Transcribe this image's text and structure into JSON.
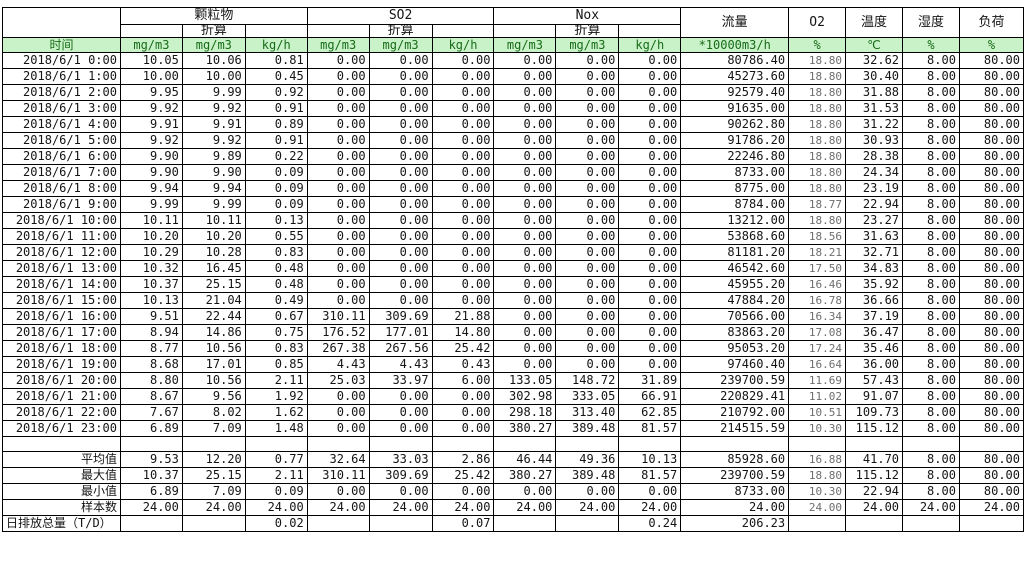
{
  "colors": {
    "unit_row_bg": "#c9f2c9",
    "unit_row_text": "#176b17",
    "border": "#000000",
    "o2_text": "#6e6e6e"
  },
  "header": {
    "time_label": "时间",
    "converted_label": "折算",
    "groups": [
      {
        "label": "颗粒物"
      },
      {
        "label": "SO2"
      },
      {
        "label": "Nox"
      }
    ],
    "singles": [
      "流量",
      "O2",
      "温度",
      "湿度",
      "负荷"
    ],
    "units": [
      "mg/m3",
      "mg/m3",
      "kg/h",
      "mg/m3",
      "mg/m3",
      "kg/h",
      "mg/m3",
      "mg/m3",
      "kg/h",
      "*10000m3/h",
      "%",
      "℃",
      "%",
      "%"
    ]
  },
  "rows": [
    {
      "time": "2018/6/1 0:00",
      "values": [
        "10.05",
        "10.06",
        "0.81",
        "0.00",
        "0.00",
        "0.00",
        "0.00",
        "0.00",
        "0.00",
        "80786.40",
        "18.80",
        "32.62",
        "8.00",
        "80.00"
      ]
    },
    {
      "time": "2018/6/1 1:00",
      "values": [
        "10.00",
        "10.00",
        "0.45",
        "0.00",
        "0.00",
        "0.00",
        "0.00",
        "0.00",
        "0.00",
        "45273.60",
        "18.80",
        "30.40",
        "8.00",
        "80.00"
      ]
    },
    {
      "time": "2018/6/1 2:00",
      "values": [
        "9.95",
        "9.99",
        "0.92",
        "0.00",
        "0.00",
        "0.00",
        "0.00",
        "0.00",
        "0.00",
        "92579.40",
        "18.80",
        "31.88",
        "8.00",
        "80.00"
      ]
    },
    {
      "time": "2018/6/1 3:00",
      "values": [
        "9.92",
        "9.92",
        "0.91",
        "0.00",
        "0.00",
        "0.00",
        "0.00",
        "0.00",
        "0.00",
        "91635.00",
        "18.80",
        "31.53",
        "8.00",
        "80.00"
      ]
    },
    {
      "time": "2018/6/1 4:00",
      "values": [
        "9.91",
        "9.91",
        "0.89",
        "0.00",
        "0.00",
        "0.00",
        "0.00",
        "0.00",
        "0.00",
        "90262.80",
        "18.80",
        "31.22",
        "8.00",
        "80.00"
      ]
    },
    {
      "time": "2018/6/1 5:00",
      "values": [
        "9.92",
        "9.92",
        "0.91",
        "0.00",
        "0.00",
        "0.00",
        "0.00",
        "0.00",
        "0.00",
        "91786.20",
        "18.80",
        "30.93",
        "8.00",
        "80.00"
      ]
    },
    {
      "time": "2018/6/1 6:00",
      "values": [
        "9.90",
        "9.89",
        "0.22",
        "0.00",
        "0.00",
        "0.00",
        "0.00",
        "0.00",
        "0.00",
        "22246.80",
        "18.80",
        "28.38",
        "8.00",
        "80.00"
      ]
    },
    {
      "time": "2018/6/1 7:00",
      "values": [
        "9.90",
        "9.90",
        "0.09",
        "0.00",
        "0.00",
        "0.00",
        "0.00",
        "0.00",
        "0.00",
        "8733.00",
        "18.80",
        "24.34",
        "8.00",
        "80.00"
      ]
    },
    {
      "time": "2018/6/1 8:00",
      "values": [
        "9.94",
        "9.94",
        "0.09",
        "0.00",
        "0.00",
        "0.00",
        "0.00",
        "0.00",
        "0.00",
        "8775.00",
        "18.80",
        "23.19",
        "8.00",
        "80.00"
      ]
    },
    {
      "time": "2018/6/1 9:00",
      "values": [
        "9.99",
        "9.99",
        "0.09",
        "0.00",
        "0.00",
        "0.00",
        "0.00",
        "0.00",
        "0.00",
        "8784.00",
        "18.77",
        "22.94",
        "8.00",
        "80.00"
      ]
    },
    {
      "time": "2018/6/1 10:00",
      "values": [
        "10.11",
        "10.11",
        "0.13",
        "0.00",
        "0.00",
        "0.00",
        "0.00",
        "0.00",
        "0.00",
        "13212.00",
        "18.80",
        "23.27",
        "8.00",
        "80.00"
      ]
    },
    {
      "time": "2018/6/1 11:00",
      "values": [
        "10.20",
        "10.20",
        "0.55",
        "0.00",
        "0.00",
        "0.00",
        "0.00",
        "0.00",
        "0.00",
        "53868.60",
        "18.56",
        "31.63",
        "8.00",
        "80.00"
      ]
    },
    {
      "time": "2018/6/1 12:00",
      "values": [
        "10.29",
        "10.28",
        "0.83",
        "0.00",
        "0.00",
        "0.00",
        "0.00",
        "0.00",
        "0.00",
        "81181.20",
        "18.21",
        "32.71",
        "8.00",
        "80.00"
      ]
    },
    {
      "time": "2018/6/1 13:00",
      "values": [
        "10.32",
        "16.45",
        "0.48",
        "0.00",
        "0.00",
        "0.00",
        "0.00",
        "0.00",
        "0.00",
        "46542.60",
        "17.50",
        "34.83",
        "8.00",
        "80.00"
      ]
    },
    {
      "time": "2018/6/1 14:00",
      "values": [
        "10.37",
        "25.15",
        "0.48",
        "0.00",
        "0.00",
        "0.00",
        "0.00",
        "0.00",
        "0.00",
        "45955.20",
        "16.46",
        "35.92",
        "8.00",
        "80.00"
      ]
    },
    {
      "time": "2018/6/1 15:00",
      "values": [
        "10.13",
        "21.04",
        "0.49",
        "0.00",
        "0.00",
        "0.00",
        "0.00",
        "0.00",
        "0.00",
        "47884.20",
        "16.78",
        "36.66",
        "8.00",
        "80.00"
      ]
    },
    {
      "time": "2018/6/1 16:00",
      "values": [
        "9.51",
        "22.44",
        "0.67",
        "310.11",
        "309.69",
        "21.88",
        "0.00",
        "0.00",
        "0.00",
        "70566.00",
        "16.34",
        "37.19",
        "8.00",
        "80.00"
      ]
    },
    {
      "time": "2018/6/1 17:00",
      "values": [
        "8.94",
        "14.86",
        "0.75",
        "176.52",
        "177.01",
        "14.80",
        "0.00",
        "0.00",
        "0.00",
        "83863.20",
        "17.08",
        "36.47",
        "8.00",
        "80.00"
      ]
    },
    {
      "time": "2018/6/1 18:00",
      "values": [
        "8.77",
        "10.56",
        "0.83",
        "267.38",
        "267.56",
        "25.42",
        "0.00",
        "0.00",
        "0.00",
        "95053.20",
        "17.24",
        "35.46",
        "8.00",
        "80.00"
      ]
    },
    {
      "time": "2018/6/1 19:00",
      "values": [
        "8.68",
        "17.01",
        "0.85",
        "4.43",
        "4.43",
        "0.43",
        "0.00",
        "0.00",
        "0.00",
        "97460.40",
        "16.64",
        "36.00",
        "8.00",
        "80.00"
      ]
    },
    {
      "time": "2018/6/1 20:00",
      "values": [
        "8.80",
        "10.56",
        "2.11",
        "25.03",
        "33.97",
        "6.00",
        "133.05",
        "148.72",
        "31.89",
        "239700.59",
        "11.69",
        "57.43",
        "8.00",
        "80.00"
      ]
    },
    {
      "time": "2018/6/1 21:00",
      "values": [
        "8.67",
        "9.56",
        "1.92",
        "0.00",
        "0.00",
        "0.00",
        "302.98",
        "333.05",
        "66.91",
        "220829.41",
        "11.02",
        "91.07",
        "8.00",
        "80.00"
      ]
    },
    {
      "time": "2018/6/1 22:00",
      "values": [
        "7.67",
        "8.02",
        "1.62",
        "0.00",
        "0.00",
        "0.00",
        "298.18",
        "313.40",
        "62.85",
        "210792.00",
        "10.51",
        "109.73",
        "8.00",
        "80.00"
      ]
    },
    {
      "time": "2018/6/1 23:00",
      "values": [
        "6.89",
        "7.09",
        "1.48",
        "0.00",
        "0.00",
        "0.00",
        "380.27",
        "389.48",
        "81.57",
        "214515.59",
        "10.30",
        "115.12",
        "8.00",
        "80.00"
      ]
    }
  ],
  "summary": [
    {
      "label": "平均值",
      "values": [
        "9.53",
        "12.20",
        "0.77",
        "32.64",
        "33.03",
        "2.86",
        "46.44",
        "49.36",
        "10.13",
        "85928.60",
        "16.88",
        "41.70",
        "8.00",
        "80.00"
      ]
    },
    {
      "label": "最大值",
      "values": [
        "10.37",
        "25.15",
        "2.11",
        "310.11",
        "309.69",
        "25.42",
        "380.27",
        "389.48",
        "81.57",
        "239700.59",
        "18.80",
        "115.12",
        "8.00",
        "80.00"
      ]
    },
    {
      "label": "最小值",
      "values": [
        "6.89",
        "7.09",
        "0.09",
        "0.00",
        "0.00",
        "0.00",
        "0.00",
        "0.00",
        "0.00",
        "8733.00",
        "10.30",
        "22.94",
        "8.00",
        "80.00"
      ]
    },
    {
      "label": "样本数",
      "values": [
        "24.00",
        "24.00",
        "24.00",
        "24.00",
        "24.00",
        "24.00",
        "24.00",
        "24.00",
        "24.00",
        "24.00",
        "24.00",
        "24.00",
        "24.00",
        "24.00"
      ]
    },
    {
      "label": "日排放总量（T/D）",
      "values": [
        "",
        "",
        "0.02",
        "",
        "",
        "0.07",
        "",
        "",
        "0.24",
        "206.23",
        "",
        "",
        "",
        ""
      ]
    }
  ]
}
